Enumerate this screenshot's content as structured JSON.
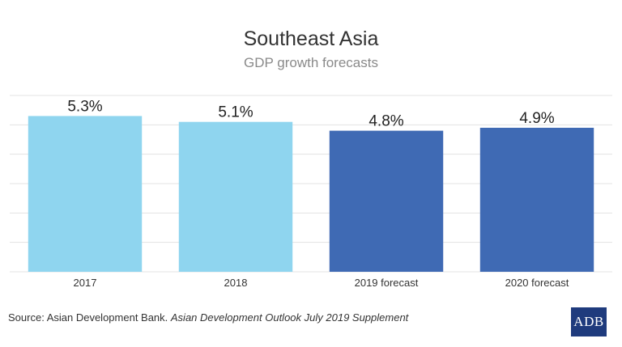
{
  "chart_data": {
    "type": "bar",
    "title": "Southeast Asia",
    "subtitle": "GDP growth forecasts",
    "categories": [
      "2017",
      "2018",
      "2019 forecast",
      "2020 forecast"
    ],
    "values": [
      5.3,
      5.1,
      4.8,
      4.9
    ],
    "value_labels": [
      "5.3%",
      "5.1%",
      "4.8%",
      "4.9%"
    ],
    "bar_colors": [
      "#8fd5ef",
      "#8fd5ef",
      "#3f6ab4",
      "#3f6ab4"
    ],
    "ylim": [
      0,
      6
    ],
    "grid": true,
    "xlabel": "",
    "ylabel": ""
  },
  "footer": {
    "source_prefix": "Source: Asian Development Bank. ",
    "source_publication": "Asian Development Outlook July 2019 Supplement"
  },
  "logo": {
    "text": "ADB",
    "color": "#1f3b7d"
  }
}
